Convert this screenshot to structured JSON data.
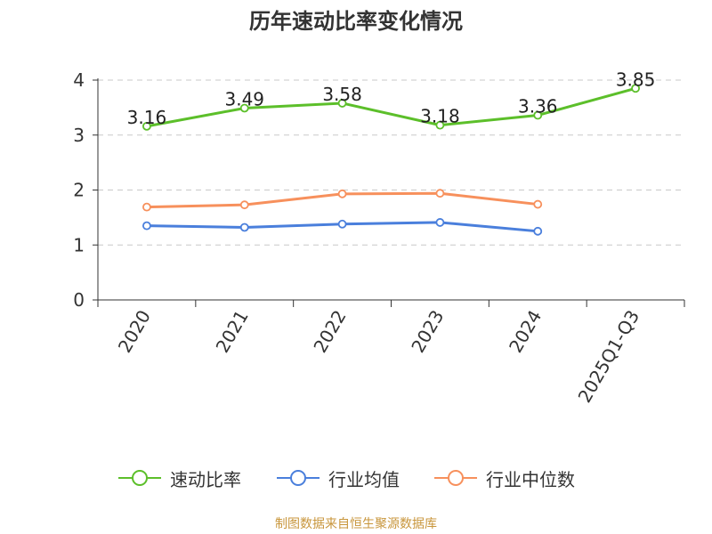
{
  "chart_data": {
    "type": "line",
    "title": "历年速动比率变化情况",
    "categories": [
      "2020",
      "2021",
      "2022",
      "2023",
      "2024",
      "2025Q1-Q3"
    ],
    "ylim": [
      0,
      4
    ],
    "yticks": [
      "0",
      "1",
      "2",
      "3",
      "4"
    ],
    "grid": true,
    "legend_position": "bottom",
    "series": [
      {
        "name": "速动比率",
        "color": "#5cbf2a",
        "values": [
          3.16,
          3.49,
          3.58,
          3.18,
          3.36,
          3.85
        ],
        "show_labels": true,
        "labels": [
          "3.16",
          "3.49",
          "3.58",
          "3.18",
          "3.36",
          "3.85"
        ]
      },
      {
        "name": "行业均值",
        "color": "#4a7fdc",
        "values": [
          1.35,
          1.32,
          1.38,
          1.41,
          1.25,
          null
        ],
        "show_labels": false
      },
      {
        "name": "行业中位数",
        "color": "#f7905c",
        "values": [
          1.69,
          1.73,
          1.93,
          1.94,
          1.74,
          null
        ],
        "show_labels": false
      }
    ],
    "source": "制图数据来自恒生聚源数据库"
  }
}
